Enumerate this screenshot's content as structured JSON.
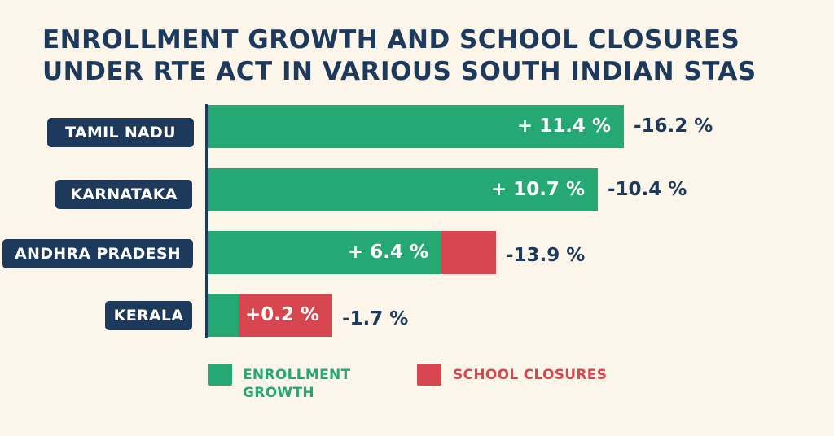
{
  "chart_data": {
    "type": "bar",
    "orientation": "horizontal",
    "title_lines": [
      "ENROLLMENT GROWTH AND SCHOOL CLOSURES",
      "UNDER RTE ACT IN VARIOUS SOUTH INDIAN STAS"
    ],
    "categories": [
      "TAMIL NADU",
      "KARNATAKA",
      "ANDHRA PRADESH",
      "KERALA"
    ],
    "series": [
      {
        "name": "ENROLLMENT GROWTH",
        "color": "#26a874",
        "values": [
          11.4,
          10.7,
          6.4,
          0.2
        ],
        "labels": [
          "+ 11.4 %",
          "+ 10.7 %",
          "+ 6.4 %",
          "+0.2 %"
        ]
      },
      {
        "name": "SCHOOL CLOSURES",
        "color": "#d6464f",
        "values": [
          -16.2,
          -10.4,
          -13.9,
          -1.7
        ],
        "labels": [
          "-16.2 %",
          "-10.4 %",
          "-13.9 %",
          "-1.7 %"
        ]
      }
    ],
    "legend": {
      "position": "bottom",
      "items": [
        {
          "lines": [
            "ENROLLMENT",
            "GROWTH"
          ],
          "color": "#26a874"
        },
        {
          "lines": [
            "SCHOOL CLOSURES"
          ],
          "color": "#d6464f"
        }
      ]
    },
    "grid": false
  }
}
